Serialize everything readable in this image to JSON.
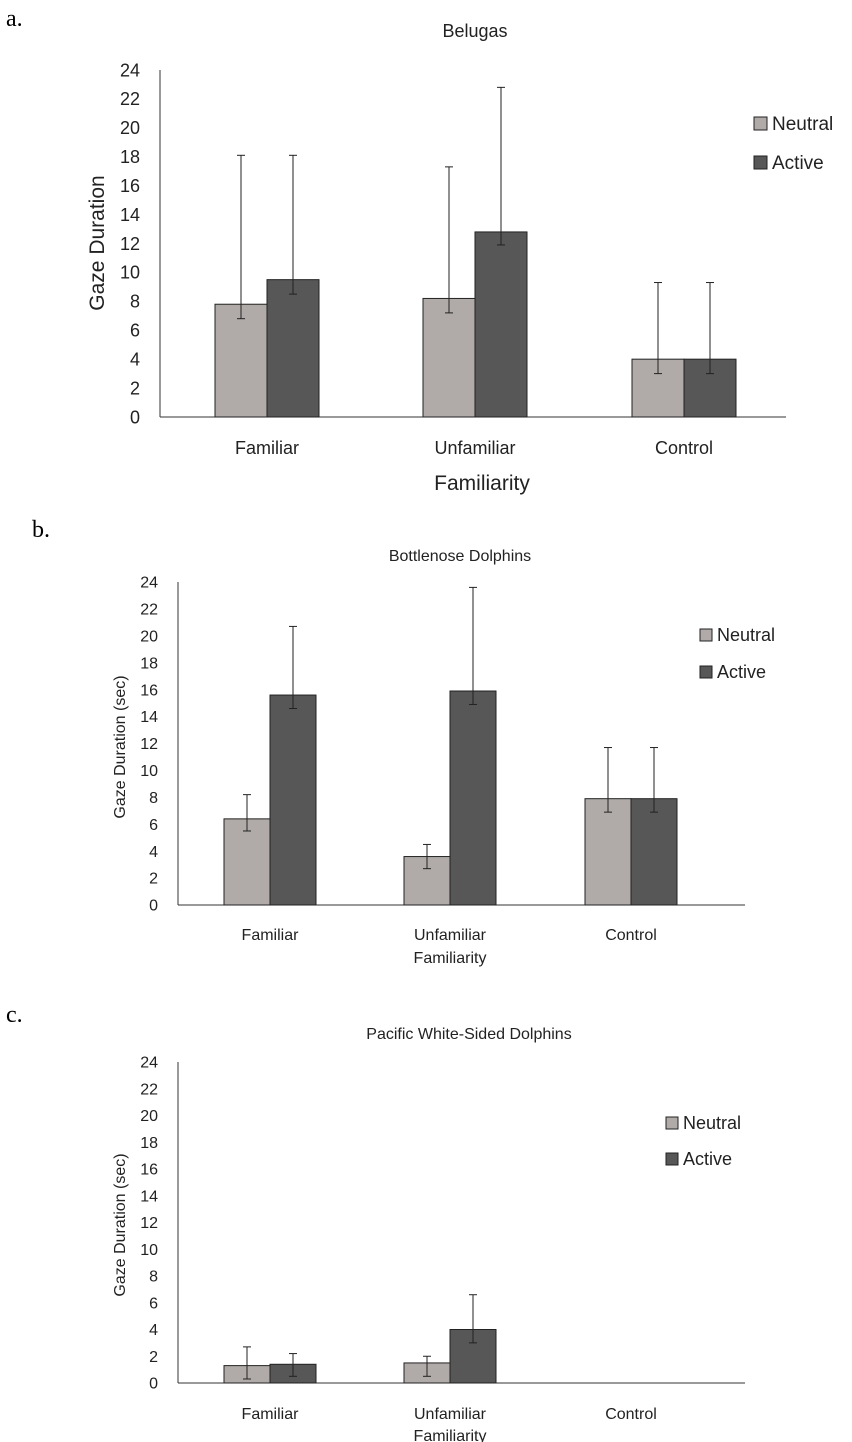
{
  "chart_data": [
    {
      "type": "bar",
      "panel": "a.",
      "title": "Belugas",
      "xlabel": "Familiarity",
      "ylabel": "Gaze Duration",
      "ylim": [
        0,
        24
      ],
      "yticks": [
        "0",
        "2",
        "4",
        "6",
        "8",
        "10",
        "12",
        "14",
        "16",
        "18",
        "20",
        "22",
        "24"
      ],
      "categories": [
        "Familiar",
        "Unfamiliar",
        "Control"
      ],
      "series": [
        {
          "name": "Neutral",
          "color": "#b0aba8",
          "values": [
            7.8,
            8.2,
            4.0
          ],
          "err_upper": [
            18.1,
            17.3,
            9.3
          ],
          "err_lower": [
            6.8,
            7.2,
            3.0
          ]
        },
        {
          "name": "Active",
          "color": "#575757",
          "values": [
            9.5,
            12.8,
            4.0
          ],
          "err_upper": [
            18.1,
            22.8,
            9.3
          ],
          "err_lower": [
            8.5,
            11.9,
            3.0
          ]
        }
      ],
      "legend_position": "right",
      "grid": false
    },
    {
      "type": "bar",
      "panel": "b.",
      "title": "Bottlenose Dolphins",
      "xlabel": "Familiarity",
      "ylabel": "Gaze Duration (sec)",
      "ylim": [
        0,
        24
      ],
      "yticks": [
        "0",
        "2",
        "4",
        "6",
        "8",
        "10",
        "12",
        "14",
        "16",
        "18",
        "20",
        "22",
        "24"
      ],
      "categories": [
        "Familiar",
        "Unfamiliar",
        "Control"
      ],
      "series": [
        {
          "name": "Neutral",
          "color": "#b0aba8",
          "values": [
            6.4,
            3.6,
            7.9
          ],
          "err_upper": [
            8.2,
            4.5,
            11.7
          ],
          "err_lower": [
            5.5,
            2.7,
            6.9
          ]
        },
        {
          "name": "Active",
          "color": "#575757",
          "values": [
            15.6,
            15.9,
            7.9
          ],
          "err_upper": [
            20.7,
            23.6,
            11.7
          ],
          "err_lower": [
            14.6,
            14.9,
            6.9
          ]
        }
      ],
      "legend_position": "right",
      "grid": false
    },
    {
      "type": "bar",
      "panel": "c.",
      "title": "Pacific White-Sided Dolphins",
      "xlabel": "Familiarity",
      "ylabel": "Gaze Duration (sec)",
      "ylim": [
        0,
        24
      ],
      "yticks": [
        "0",
        "2",
        "4",
        "6",
        "8",
        "10",
        "12",
        "14",
        "16",
        "18",
        "20",
        "22",
        "24"
      ],
      "categories": [
        "Familiar",
        "Unfamiliar",
        "Control"
      ],
      "series": [
        {
          "name": "Neutral",
          "color": "#b0aba8",
          "values": [
            1.3,
            1.5,
            0
          ],
          "err_upper": [
            2.7,
            2.0,
            null
          ],
          "err_lower": [
            0.3,
            0.5,
            null
          ]
        },
        {
          "name": "Active",
          "color": "#575757",
          "values": [
            1.4,
            4.0,
            0
          ],
          "err_upper": [
            2.2,
            6.6,
            null
          ],
          "err_lower": [
            0.5,
            3.0,
            null
          ]
        }
      ],
      "legend_position": "right",
      "grid": false
    }
  ]
}
